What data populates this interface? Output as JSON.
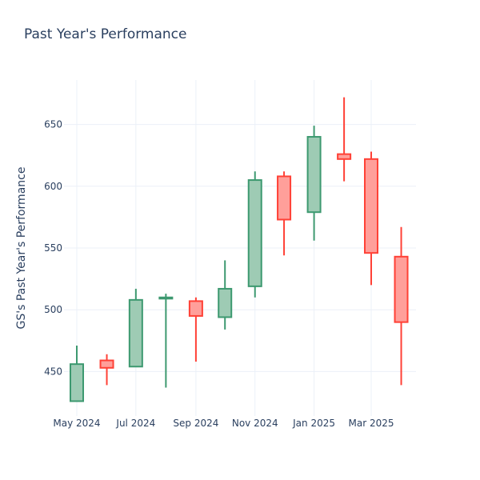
{
  "chart_data": {
    "type": "candlestick",
    "title": "Past Year's Performance",
    "ylabel": "GS's Past Year's Performance",
    "xlabel": "",
    "ylim": [
      414,
      686
    ],
    "x_ticks": [
      {
        "label": "May 2024",
        "date": "2024-05-01"
      },
      {
        "label": "Jul 2024",
        "date": "2024-07-01"
      },
      {
        "label": "Sep 2024",
        "date": "2024-09-01"
      },
      {
        "label": "Nov 2024",
        "date": "2024-11-01"
      },
      {
        "label": "Jan 2025",
        "date": "2025-01-01"
      },
      {
        "label": "Mar 2025",
        "date": "2025-03-01"
      }
    ],
    "y_ticks": [
      450,
      500,
      550,
      600,
      650
    ],
    "grid": true,
    "increasing_color": "#3d9970",
    "increasing_fill": "#9ecbb4",
    "decreasing_color": "#ff4136",
    "decreasing_fill": "#ff9f9a",
    "candles": [
      {
        "date": "2024-05-01",
        "open": 426,
        "high": 471,
        "low": 426,
        "close": 456
      },
      {
        "date": "2024-06-01",
        "open": 459,
        "high": 464,
        "low": 439,
        "close": 453
      },
      {
        "date": "2024-07-01",
        "open": 454,
        "high": 517,
        "low": 454,
        "close": 508
      },
      {
        "date": "2024-08-01",
        "open": 509,
        "high": 513,
        "low": 437,
        "close": 510
      },
      {
        "date": "2024-09-01",
        "open": 507,
        "high": 510,
        "low": 458,
        "close": 495
      },
      {
        "date": "2024-10-01",
        "open": 494,
        "high": 540,
        "low": 484,
        "close": 517
      },
      {
        "date": "2024-11-01",
        "open": 519,
        "high": 612,
        "low": 510,
        "close": 605
      },
      {
        "date": "2024-12-01",
        "open": 608,
        "high": 612,
        "low": 544,
        "close": 573
      },
      {
        "date": "2025-01-01",
        "open": 579,
        "high": 649,
        "low": 556,
        "close": 640
      },
      {
        "date": "2025-02-01",
        "open": 626,
        "high": 672,
        "low": 604,
        "close": 622
      },
      {
        "date": "2025-03-01",
        "open": 622,
        "high": 628,
        "low": 520,
        "close": 546
      },
      {
        "date": "2025-04-01",
        "open": 543,
        "high": 567,
        "low": 439,
        "close": 490
      }
    ]
  }
}
